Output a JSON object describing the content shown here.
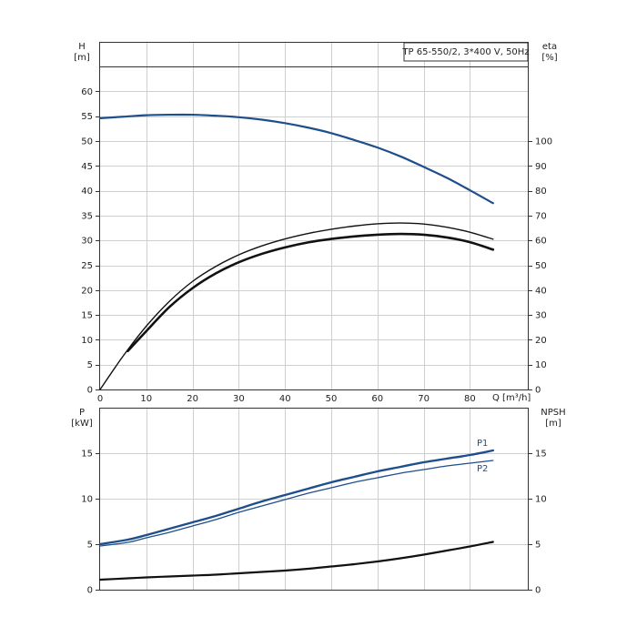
{
  "chart_data": [
    {
      "type": "line",
      "title": "TP 65-550/2, 3*400 V, 50Hz",
      "xlabel": "Q [m³/h]",
      "xlim": [
        0,
        90
      ],
      "x_ticks": [
        0,
        10,
        20,
        30,
        40,
        50,
        60,
        70,
        80
      ],
      "y_left": {
        "label_line1": "H",
        "label_line2": "[m]",
        "lim": [
          0,
          65
        ],
        "ticks": [
          0,
          5,
          10,
          15,
          20,
          25,
          30,
          35,
          40,
          45,
          50,
          55,
          60
        ]
      },
      "y_right": {
        "label_line1": "eta",
        "label_line2": "[%]",
        "lim": [
          0,
          100
        ],
        "ticks": [
          0,
          10,
          20,
          30,
          40,
          50,
          60,
          70,
          80,
          90,
          100
        ]
      },
      "grid": true,
      "series": [
        {
          "name": "",
          "axis": "left",
          "color": "#1f4e8c",
          "x": [
            0,
            5,
            10,
            15,
            20,
            25,
            30,
            35,
            40,
            45,
            50,
            55,
            60,
            65,
            70,
            75,
            80,
            85
          ],
          "y": [
            54.6,
            54.9,
            55.2,
            55.3,
            55.3,
            55.1,
            54.8,
            54.3,
            53.6,
            52.7,
            51.6,
            50.2,
            48.7,
            46.9,
            44.8,
            42.6,
            40.1,
            37.5
          ]
        },
        {
          "name": "",
          "axis": "right",
          "color": "#111111",
          "x": [
            0,
            5,
            10,
            15,
            20,
            25,
            30,
            35,
            40,
            45,
            50,
            55,
            60,
            65,
            70,
            75,
            80,
            85
          ],
          "y": [
            0,
            13.5,
            25.5,
            35.5,
            43.5,
            49.5,
            54.2,
            57.8,
            60.6,
            62.8,
            64.5,
            65.8,
            66.7,
            67.0,
            66.6,
            65.3,
            63.3,
            60.5
          ]
        },
        {
          "name": "",
          "axis": "right",
          "color": "#111111",
          "x": [
            6,
            10,
            15,
            20,
            25,
            30,
            35,
            40,
            45,
            50,
            55,
            60,
            65,
            70,
            75,
            80,
            85
          ],
          "y": [
            15.5,
            23.5,
            33.2,
            40.8,
            46.7,
            51.2,
            54.6,
            57.2,
            59.2,
            60.6,
            61.6,
            62.3,
            62.6,
            62.3,
            61.2,
            59.3,
            56.3
          ]
        }
      ]
    },
    {
      "type": "line",
      "title": "",
      "xlim": [
        0,
        90
      ],
      "x_ticks": [
        0,
        10,
        20,
        30,
        40,
        50,
        60,
        70,
        80
      ],
      "y_left": {
        "label_line1": "P",
        "label_line2": "[kW]",
        "lim": [
          0,
          20
        ],
        "ticks": [
          0,
          5,
          10,
          15
        ]
      },
      "y_right": {
        "label_line1": "NPSH",
        "label_line2": "[m]",
        "lim": [
          0,
          20
        ],
        "ticks": [
          0,
          5,
          10,
          15
        ]
      },
      "grid": true,
      "series": [
        {
          "name": "P1",
          "axis": "left",
          "color": "#1f4e8c",
          "x": [
            0,
            6,
            10,
            15,
            20,
            25,
            30,
            35,
            40,
            45,
            50,
            55,
            60,
            65,
            70,
            75,
            80,
            85
          ],
          "y": [
            5.0,
            5.5,
            6.0,
            6.7,
            7.4,
            8.1,
            8.9,
            9.7,
            10.4,
            11.1,
            11.8,
            12.4,
            13.0,
            13.5,
            14.0,
            14.4,
            14.8,
            15.3
          ]
        },
        {
          "name": "P2",
          "axis": "left",
          "color": "#1f4e8c",
          "x": [
            0,
            6,
            10,
            15,
            20,
            25,
            30,
            35,
            40,
            45,
            50,
            55,
            60,
            65,
            70,
            75,
            80,
            85
          ],
          "y": [
            4.8,
            5.2,
            5.7,
            6.3,
            7.0,
            7.7,
            8.5,
            9.2,
            9.9,
            10.6,
            11.2,
            11.8,
            12.3,
            12.8,
            13.2,
            13.6,
            13.9,
            14.2
          ]
        },
        {
          "name": "",
          "axis": "right",
          "color": "#111111",
          "x": [
            0,
            6,
            10,
            15,
            20,
            25,
            30,
            35,
            40,
            45,
            50,
            55,
            60,
            65,
            70,
            75,
            80,
            85
          ],
          "y": [
            1.1,
            1.25,
            1.35,
            1.45,
            1.55,
            1.65,
            1.8,
            1.95,
            2.1,
            2.3,
            2.55,
            2.8,
            3.1,
            3.45,
            3.85,
            4.3,
            4.75,
            5.25
          ]
        }
      ]
    }
  ]
}
